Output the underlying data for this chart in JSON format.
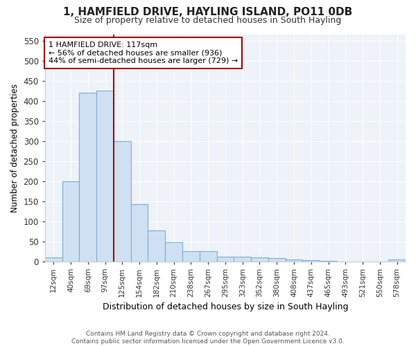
{
  "title1": "1, HAMFIELD DRIVE, HAYLING ISLAND, PO11 0DB",
  "title2": "Size of property relative to detached houses in South Hayling",
  "xlabel": "Distribution of detached houses by size in South Hayling",
  "ylabel": "Number of detached properties",
  "bar_labels": [
    "12sqm",
    "40sqm",
    "69sqm",
    "97sqm",
    "125sqm",
    "154sqm",
    "182sqm",
    "210sqm",
    "238sqm",
    "267sqm",
    "295sqm",
    "323sqm",
    "352sqm",
    "380sqm",
    "408sqm",
    "437sqm",
    "465sqm",
    "493sqm",
    "521sqm",
    "550sqm",
    "578sqm"
  ],
  "bar_values": [
    10,
    200,
    420,
    425,
    300,
    143,
    77,
    48,
    25,
    25,
    12,
    11,
    9,
    7,
    4,
    2,
    1,
    0,
    0,
    0,
    4
  ],
  "bar_color": "#cfe0f2",
  "bar_edge_color": "#7aadd4",
  "vline_color": "#aa0000",
  "annotation_text": "1 HAMFIELD DRIVE: 117sqm\n← 56% of detached houses are smaller (936)\n44% of semi-detached houses are larger (729) →",
  "annotation_box_color": "#ffffff",
  "annotation_box_edge": "#aa0000",
  "ylim": [
    0,
    565
  ],
  "yticks": [
    0,
    50,
    100,
    150,
    200,
    250,
    300,
    350,
    400,
    450,
    500,
    550
  ],
  "footer_line1": "Contains HM Land Registry data © Crown copyright and database right 2024.",
  "footer_line2": "Contains public sector information licensed under the Open Government Licence v3.0.",
  "bg_color": "#ffffff",
  "plot_bg_color": "#eef2f9",
  "grid_color": "#ffffff",
  "title1_fontsize": 11,
  "title2_fontsize": 9
}
